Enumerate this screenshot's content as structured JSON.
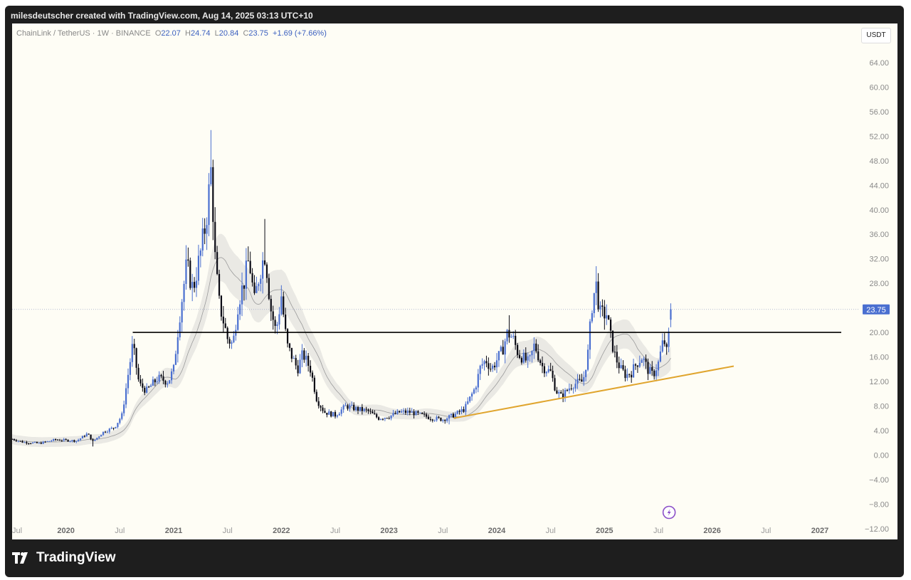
{
  "header": {
    "creator_text": "milesdeutscher created with TradingView.com, Aug 14, 2025 03:13 UTC+10"
  },
  "legend": {
    "symbol": "ChainLink / TetherUS · 1W · BINANCE",
    "o_label": "O",
    "o": "22.07",
    "h_label": "H",
    "h": "24.74",
    "l_label": "L",
    "l": "20.84",
    "c_label": "C",
    "c": "23.75",
    "change": "+1.69 (+7.66%)"
  },
  "currency_label": "USDT",
  "brand": {
    "name": "TradingView"
  },
  "colors": {
    "up": "#4a6fd0",
    "down": "#0a0a14",
    "resistance": "#000000",
    "trendline": "#e0a52e",
    "price_label_bg": "#4a6fd0",
    "ma_band": "#d9d9d6",
    "ma_line": "#9a9a9a"
  },
  "chart_data": {
    "type": "candlestick",
    "symbol": "ChainLink / TetherUS",
    "interval": "1W",
    "exchange": "BINANCE",
    "ylim": [
      -12,
      66
    ],
    "yticks": [
      "64.00",
      "60.00",
      "56.00",
      "52.00",
      "48.00",
      "44.00",
      "40.00",
      "36.00",
      "32.00",
      "28.00",
      "24.00",
      "20.00",
      "16.00",
      "12.00",
      "8.00",
      "4.00",
      "0.00",
      "−4.00",
      "−8.00",
      "−12.00"
    ],
    "ytick_values": [
      64,
      60,
      56,
      52,
      48,
      44,
      40,
      36,
      32,
      28,
      24,
      20,
      16,
      12,
      8,
      4,
      0,
      -4,
      -8,
      -12
    ],
    "xticks": [
      "Jul",
      "2020",
      "Jul",
      "2021",
      "Jul",
      "2022",
      "Jul",
      "2023",
      "Jul",
      "2024",
      "Jul",
      "2025",
      "Jul",
      "2026",
      "Jul",
      "2027"
    ],
    "xtick_values": [
      2019.5,
      2020.0,
      2020.5,
      2021.0,
      2021.5,
      2022.0,
      2022.5,
      2023.0,
      2023.5,
      2024.0,
      2024.5,
      2025.0,
      2025.5,
      2026.0,
      2026.5,
      2027.0
    ],
    "xlim": [
      2019.5,
      2027.4
    ],
    "last_price": "23.75",
    "last_price_value": 23.75,
    "close_series": [
      {
        "t": 2019.5,
        "v": 2.6
      },
      {
        "t": 2019.6,
        "v": 2.1
      },
      {
        "t": 2019.75,
        "v": 1.9
      },
      {
        "t": 2019.9,
        "v": 2.5
      },
      {
        "t": 2020.0,
        "v": 2.4
      },
      {
        "t": 2020.1,
        "v": 2.3
      },
      {
        "t": 2020.2,
        "v": 3.5
      },
      {
        "t": 2020.25,
        "v": 2.2
      },
      {
        "t": 2020.35,
        "v": 3.8
      },
      {
        "t": 2020.45,
        "v": 4.5
      },
      {
        "t": 2020.52,
        "v": 6.5
      },
      {
        "t": 2020.58,
        "v": 13.5
      },
      {
        "t": 2020.62,
        "v": 18.0
      },
      {
        "t": 2020.68,
        "v": 11.5
      },
      {
        "t": 2020.75,
        "v": 10.5
      },
      {
        "t": 2020.85,
        "v": 12.5
      },
      {
        "t": 2020.95,
        "v": 12.0
      },
      {
        "t": 2021.0,
        "v": 14.0
      },
      {
        "t": 2021.05,
        "v": 22.0
      },
      {
        "t": 2021.12,
        "v": 31.0
      },
      {
        "t": 2021.18,
        "v": 27.0
      },
      {
        "t": 2021.25,
        "v": 33.0
      },
      {
        "t": 2021.3,
        "v": 38.0
      },
      {
        "t": 2021.35,
        "v": 47.0
      },
      {
        "t": 2021.38,
        "v": 33.0
      },
      {
        "t": 2021.42,
        "v": 25.0
      },
      {
        "t": 2021.5,
        "v": 19.0
      },
      {
        "t": 2021.55,
        "v": 18.0
      },
      {
        "t": 2021.6,
        "v": 25.0
      },
      {
        "t": 2021.65,
        "v": 28.0
      },
      {
        "t": 2021.7,
        "v": 32.0
      },
      {
        "t": 2021.75,
        "v": 25.0
      },
      {
        "t": 2021.8,
        "v": 30.0
      },
      {
        "t": 2021.85,
        "v": 33.0
      },
      {
        "t": 2021.9,
        "v": 24.0
      },
      {
        "t": 2021.95,
        "v": 20.0
      },
      {
        "t": 2022.0,
        "v": 26.0
      },
      {
        "t": 2022.05,
        "v": 18.0
      },
      {
        "t": 2022.1,
        "v": 16.0
      },
      {
        "t": 2022.15,
        "v": 14.0
      },
      {
        "t": 2022.2,
        "v": 16.5
      },
      {
        "t": 2022.27,
        "v": 14.0
      },
      {
        "t": 2022.33,
        "v": 9.0
      },
      {
        "t": 2022.4,
        "v": 7.0
      },
      {
        "t": 2022.5,
        "v": 6.5
      },
      {
        "t": 2022.6,
        "v": 8.0
      },
      {
        "t": 2022.7,
        "v": 7.5
      },
      {
        "t": 2022.8,
        "v": 7.2
      },
      {
        "t": 2022.9,
        "v": 6.0
      },
      {
        "t": 2023.0,
        "v": 6.3
      },
      {
        "t": 2023.1,
        "v": 7.0
      },
      {
        "t": 2023.2,
        "v": 7.0
      },
      {
        "t": 2023.3,
        "v": 6.5
      },
      {
        "t": 2023.4,
        "v": 6.0
      },
      {
        "t": 2023.5,
        "v": 5.8
      },
      {
        "t": 2023.6,
        "v": 6.5
      },
      {
        "t": 2023.7,
        "v": 7.5
      },
      {
        "t": 2023.8,
        "v": 11.0
      },
      {
        "t": 2023.85,
        "v": 14.5
      },
      {
        "t": 2023.9,
        "v": 15.5
      },
      {
        "t": 2023.95,
        "v": 14.0
      },
      {
        "t": 2024.05,
        "v": 17.0
      },
      {
        "t": 2024.1,
        "v": 20.0
      },
      {
        "t": 2024.15,
        "v": 19.0
      },
      {
        "t": 2024.2,
        "v": 16.5
      },
      {
        "t": 2024.3,
        "v": 15.0
      },
      {
        "t": 2024.35,
        "v": 18.0
      },
      {
        "t": 2024.42,
        "v": 14.5
      },
      {
        "t": 2024.5,
        "v": 13.5
      },
      {
        "t": 2024.55,
        "v": 10.5
      },
      {
        "t": 2024.6,
        "v": 9.5
      },
      {
        "t": 2024.7,
        "v": 11.5
      },
      {
        "t": 2024.8,
        "v": 12.0
      },
      {
        "t": 2024.85,
        "v": 17.0
      },
      {
        "t": 2024.88,
        "v": 24.0
      },
      {
        "t": 2024.92,
        "v": 28.0
      },
      {
        "t": 2024.96,
        "v": 23.0
      },
      {
        "t": 2025.02,
        "v": 23.0
      },
      {
        "t": 2025.06,
        "v": 19.0
      },
      {
        "t": 2025.1,
        "v": 16.0
      },
      {
        "t": 2025.15,
        "v": 14.0
      },
      {
        "t": 2025.2,
        "v": 13.0
      },
      {
        "t": 2025.25,
        "v": 13.5
      },
      {
        "t": 2025.3,
        "v": 15.0
      },
      {
        "t": 2025.35,
        "v": 16.0
      },
      {
        "t": 2025.4,
        "v": 14.0
      },
      {
        "t": 2025.45,
        "v": 13.0
      },
      {
        "t": 2025.5,
        "v": 15.0
      },
      {
        "t": 2025.55,
        "v": 19.0
      },
      {
        "t": 2025.58,
        "v": 16.5
      },
      {
        "t": 2025.61,
        "v": 22.07
      },
      {
        "t": 2025.63,
        "v": 23.75
      }
    ],
    "resistance_level": 20,
    "resistance_range": [
      2020.62,
      2027.4
    ],
    "trendline": [
      {
        "t": 2023.6,
        "v": 6.0
      },
      {
        "t": 2026.2,
        "v": 14.5
      }
    ]
  }
}
